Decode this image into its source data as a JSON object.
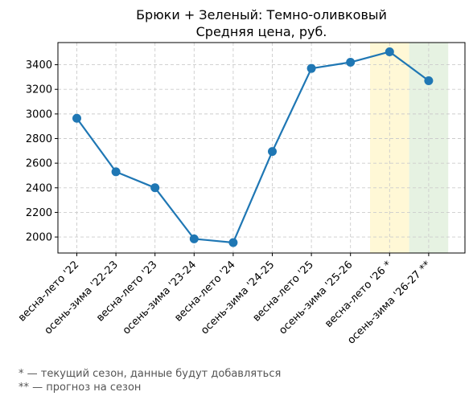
{
  "chart_data": {
    "type": "line",
    "title_lines": [
      "Брюки + Зеленый: Темно-оливковый",
      "Средняя цена, руб."
    ],
    "xlabel": "",
    "ylabel": "",
    "categories": [
      "весна-лето '22",
      "осень-зима '22-23",
      "весна-лето '23",
      "осень-зима '23-24",
      "весна-лето '24",
      "осень-зима '24-25",
      "весна-лето '25",
      "осень-зима '25-26",
      "весна-лето '26 *",
      "осень-зима '26-27 **"
    ],
    "series": [
      {
        "values": [
          2965,
          2530,
          2400,
          1985,
          1955,
          2695,
          3370,
          3420,
          3505,
          3270
        ],
        "color": "#1f77b4"
      }
    ],
    "ylim": [
      1870,
      3580
    ],
    "yticks": [
      2000,
      2200,
      2400,
      2600,
      2800,
      3000,
      3200,
      3400
    ],
    "grid": true,
    "highlights": [
      {
        "category_index": 8,
        "color": "#fff8d6",
        "meaning": "current season"
      },
      {
        "category_index": 9,
        "color": "#e6f2e2",
        "meaning": "forecast"
      }
    ],
    "footnotes": [
      "* — текущий сезон, данные будут добавляться",
      "** — прогноз на сезон"
    ]
  }
}
